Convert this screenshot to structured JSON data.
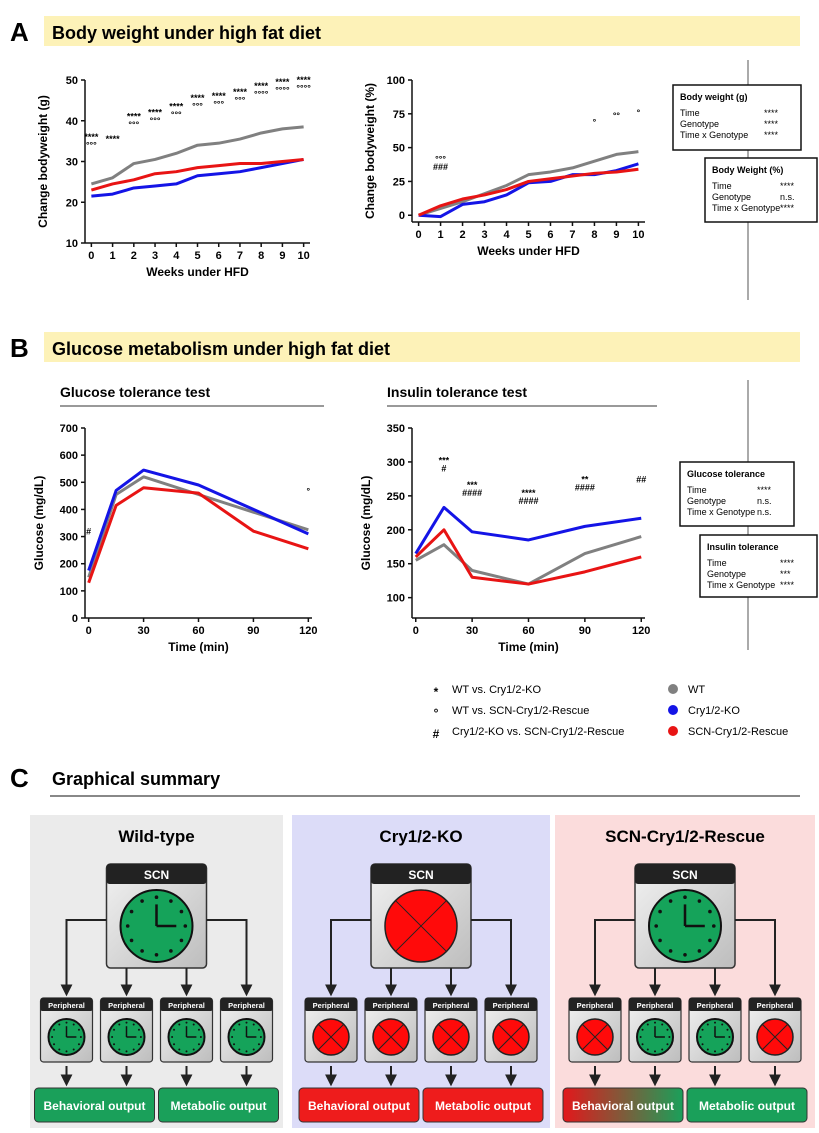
{
  "panels": [
    {
      "letter": "A",
      "title": "Body weight under high fat diet"
    },
    {
      "letter": "B",
      "title": "Glucose metabolism under high fat diet"
    },
    {
      "letter": "C",
      "title": "Graphical summary"
    }
  ],
  "chart_data": [
    {
      "type": "line",
      "xlabel": "Weeks under HFD",
      "ylabel": "Change bodyweight (g)",
      "x": [
        0,
        1,
        2,
        3,
        4,
        5,
        6,
        7,
        8,
        9,
        10
      ],
      "xlim": [
        -0.3,
        10.3
      ],
      "xticks": [
        0,
        1,
        2,
        3,
        4,
        5,
        6,
        7,
        8,
        9,
        10
      ],
      "ylim": [
        10,
        50
      ],
      "yticks": [
        10,
        20,
        30,
        40,
        50
      ],
      "series": [
        {
          "name": "WT",
          "color": "#808080",
          "values": [
            24.5,
            26,
            29.5,
            30.5,
            32,
            34,
            34.5,
            35.5,
            37,
            38,
            38.5
          ]
        },
        {
          "name": "Cry1/2-KO",
          "color": "#1414e6",
          "values": [
            21.5,
            22,
            23.5,
            24,
            24.5,
            26.5,
            27,
            27.5,
            28.5,
            29.5,
            30.5
          ]
        },
        {
          "name": "SCN-Cry1/2-Rescue",
          "color": "#e81414",
          "values": [
            23,
            24.5,
            25.5,
            27,
            27.5,
            28.5,
            29,
            29.5,
            29.5,
            30,
            30.5
          ]
        }
      ],
      "annotations": [
        {
          "x": 0,
          "lines": [
            "****",
            "°°°"
          ]
        },
        {
          "x": 1,
          "lines": [
            "****"
          ]
        },
        {
          "x": 2,
          "lines": [
            "****",
            "°°°"
          ]
        },
        {
          "x": 3,
          "lines": [
            "****",
            "°°°"
          ]
        },
        {
          "x": 4,
          "lines": [
            "****",
            "°°°"
          ]
        },
        {
          "x": 5,
          "lines": [
            "****",
            "°°°"
          ]
        },
        {
          "x": 6,
          "lines": [
            "****",
            "°°°"
          ]
        },
        {
          "x": 7,
          "lines": [
            "****",
            "°°°"
          ]
        },
        {
          "x": 8,
          "lines": [
            "****",
            "°°°°"
          ]
        },
        {
          "x": 9,
          "lines": [
            "****",
            "°°°°"
          ]
        },
        {
          "x": 10,
          "lines": [
            "****",
            "°°°°"
          ]
        }
      ]
    },
    {
      "type": "line",
      "xlabel": "Weeks under HFD",
      "ylabel": "Change bodyweight (%)",
      "x": [
        0,
        1,
        2,
        3,
        4,
        5,
        6,
        7,
        8,
        9,
        10
      ],
      "xlim": [
        -0.3,
        10.3
      ],
      "xticks": [
        0,
        1,
        2,
        3,
        4,
        5,
        6,
        7,
        8,
        9,
        10
      ],
      "ylim": [
        -5,
        100
      ],
      "yticks": [
        0,
        25,
        50,
        75,
        100
      ],
      "series": [
        {
          "name": "WT",
          "color": "#808080",
          "values": [
            0,
            5,
            10,
            16,
            22,
            30,
            32,
            35,
            40,
            45,
            47
          ]
        },
        {
          "name": "Cry1/2-KO",
          "color": "#1414e6",
          "values": [
            0,
            -1,
            8,
            10,
            15,
            24,
            25,
            30,
            30,
            33,
            38
          ]
        },
        {
          "name": "SCN-Cry1/2-Rescue",
          "color": "#e81414",
          "values": [
            0,
            7,
            12,
            15,
            19,
            25,
            27,
            29,
            31,
            32,
            34
          ]
        }
      ],
      "annotations": [
        {
          "x": 1,
          "lines": [
            "°°°",
            "###"
          ]
        },
        {
          "x": 8,
          "lines": [
            "°"
          ]
        },
        {
          "x": 9,
          "lines": [
            "°°"
          ]
        },
        {
          "x": 10,
          "lines": [
            "°"
          ]
        }
      ]
    },
    {
      "type": "line",
      "title": "Glucose tolerance test",
      "xlabel": "Time (min)",
      "ylabel": "Glucose (mg/dL)",
      "x": [
        0,
        15,
        30,
        60,
        90,
        120
      ],
      "xlim": [
        -2,
        122
      ],
      "xticks": [
        0,
        30,
        60,
        90,
        120
      ],
      "ylim": [
        0,
        700
      ],
      "yticks": [
        0,
        100,
        200,
        300,
        400,
        500,
        600,
        700
      ],
      "series": [
        {
          "name": "WT",
          "color": "#808080",
          "values": [
            150,
            455,
            520,
            455,
            390,
            325
          ]
        },
        {
          "name": "Cry1/2-KO",
          "color": "#1414e6",
          "values": [
            175,
            470,
            545,
            490,
            400,
            310
          ]
        },
        {
          "name": "SCN-Cry1/2-Rescue",
          "color": "#e81414",
          "values": [
            130,
            415,
            480,
            460,
            320,
            255
          ]
        }
      ],
      "annotations": [
        {
          "x": 0,
          "lines": [
            "#"
          ]
        },
        {
          "x": 120,
          "lines": [
            "°"
          ]
        }
      ]
    },
    {
      "type": "line",
      "title": "Insulin tolerance test",
      "xlabel": "Time (min)",
      "ylabel": "Glucose (mg/dL)",
      "x": [
        0,
        15,
        30,
        60,
        90,
        120
      ],
      "xlim": [
        -2,
        122
      ],
      "xticks": [
        0,
        30,
        60,
        90,
        120
      ],
      "ylim": [
        70,
        350
      ],
      "yticks": [
        100,
        150,
        200,
        250,
        300,
        350
      ],
      "series": [
        {
          "name": "WT",
          "color": "#808080",
          "values": [
            155,
            178,
            140,
            120,
            165,
            190
          ]
        },
        {
          "name": "Cry1/2-KO",
          "color": "#1414e6",
          "values": [
            165,
            233,
            197,
            185,
            205,
            217
          ]
        },
        {
          "name": "SCN-Cry1/2-Rescue",
          "color": "#e81414",
          "values": [
            160,
            200,
            130,
            120,
            138,
            160
          ]
        }
      ],
      "annotations": [
        {
          "x": 15,
          "lines": [
            "***",
            "#"
          ]
        },
        {
          "x": 30,
          "lines": [
            "***",
            "####"
          ]
        },
        {
          "x": 60,
          "lines": [
            "****",
            "####"
          ]
        },
        {
          "x": 90,
          "lines": [
            "**",
            "####"
          ]
        },
        {
          "x": 120,
          "lines": [
            "##"
          ]
        }
      ]
    }
  ],
  "stats_boxes": [
    {
      "title": "Body weight (g)",
      "rows": [
        [
          "Time",
          "****"
        ],
        [
          "Genotype",
          "****"
        ],
        [
          "Time x Genotype",
          "****"
        ]
      ]
    },
    {
      "title": "Body Weight (%)",
      "rows": [
        [
          "Time",
          "****"
        ],
        [
          "Genotype",
          "n.s."
        ],
        [
          "Time x Genotype",
          "****"
        ]
      ]
    },
    {
      "title": "Glucose tolerance",
      "rows": [
        [
          "Time",
          "****"
        ],
        [
          "Genotype",
          "n.s."
        ],
        [
          "Time x Genotype",
          "n.s."
        ]
      ]
    },
    {
      "title": "Insulin tolerance",
      "rows": [
        [
          "Time",
          "****"
        ],
        [
          "Genotype",
          "***"
        ],
        [
          "Time x Genotype",
          "****"
        ]
      ]
    }
  ],
  "legend": {
    "symbols": [
      {
        "symbol": "*",
        "text": "WT vs. Cry1/2-KO"
      },
      {
        "symbol": "°",
        "text": "WT vs. SCN-Cry1/2-Rescue"
      },
      {
        "symbol": "#",
        "text": "Cry1/2-KO vs. SCN-Cry1/2-Rescue"
      }
    ]
  },
  "summary": {
    "columns": [
      {
        "title": "Wild-type",
        "scn": "SCN",
        "peripheral": [
          "Peripheral",
          "Peripheral",
          "Peripheral",
          "Peripheral"
        ],
        "outputs": [
          "Behavioral output",
          "Metabolic output"
        ]
      },
      {
        "title": "Cry1/2-KO",
        "scn": "SCN",
        "peripheral": [
          "Peripheral",
          "Peripheral",
          "Peripheral",
          "Peripheral"
        ],
        "outputs": [
          "Behavioral output",
          "Metabolic output"
        ]
      },
      {
        "title": "SCN-Cry1/2-Rescue",
        "scn": "SCN",
        "peripheral": [
          "Peripheral",
          "Peripheral",
          "Peripheral",
          "Peripheral"
        ],
        "outputs": [
          "Behavioral output",
          "Metabolic output"
        ]
      }
    ]
  }
}
